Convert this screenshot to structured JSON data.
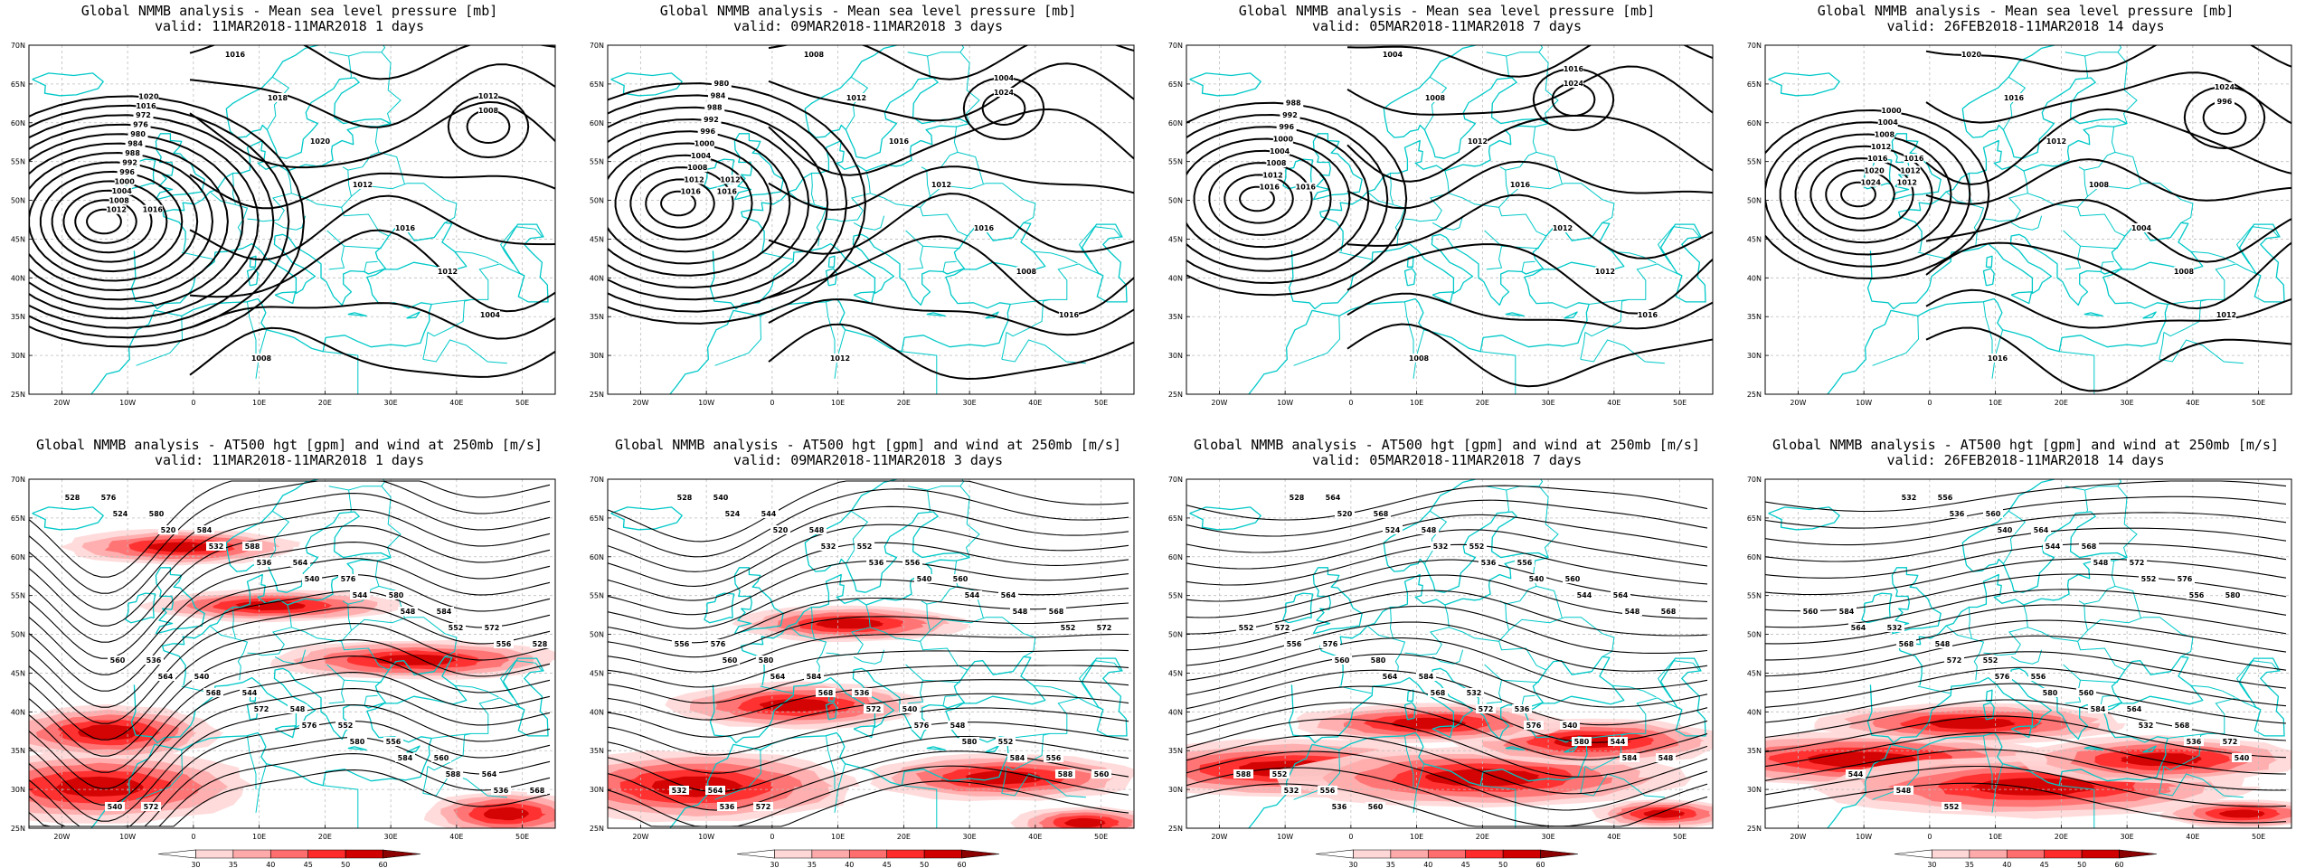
{
  "colors": {
    "coast": "#00c8c8",
    "contour": "#000000",
    "grid": "#bdbdbd",
    "wind_ramp": [
      "#ffffff",
      "#ffd7d7",
      "#ffaaaa",
      "#ff6e6e",
      "#ff2a2a",
      "#d00000",
      "#8b0000"
    ]
  },
  "axes": {
    "lat_labels": [
      "70N",
      "65N",
      "60N",
      "55N",
      "50N",
      "45N",
      "40N",
      "35N",
      "30N",
      "25N"
    ],
    "lon_labels": [
      "20W",
      "10W",
      "0",
      "10E",
      "20E",
      "30E",
      "40E",
      "50E"
    ]
  },
  "colorbar": {
    "labels": [
      "30",
      "35",
      "40",
      "45",
      "50",
      "60"
    ]
  },
  "panels": [
    {
      "title": "Global NMMB analysis - Mean sea level pressure [mb]",
      "valid": "valid: 11MAR2018-11MAR2018   1 days",
      "kind": "mslp",
      "contour_labels": [
        "1012",
        "1008",
        "1004",
        "1000",
        "996",
        "992",
        "988",
        "984",
        "980",
        "976",
        "972",
        "1016",
        "1020",
        "1008",
        "1012",
        "1016",
        "1018",
        "1020",
        "1012",
        "1016",
        "1012",
        "1004",
        "1008",
        "1016"
      ]
    },
    {
      "title": "Global NMMB analysis - Mean sea level pressure [mb]",
      "valid": "valid: 09MAR2018-11MAR2018   3 days",
      "kind": "mslp",
      "contour_labels": [
        "1016",
        "1012",
        "1008",
        "1004",
        "1000",
        "996",
        "992",
        "988",
        "984",
        "980",
        "1024",
        "1004",
        "1008",
        "1012",
        "1016",
        "1012",
        "1016",
        "1008",
        "1016",
        "1012",
        "1016",
        "1012"
      ]
    },
    {
      "title": "Global NMMB analysis - Mean sea level pressure [mb]",
      "valid": "valid: 05MAR2018-11MAR2018   7 days",
      "kind": "mslp",
      "contour_labels": [
        "1016",
        "1012",
        "1008",
        "1004",
        "1000",
        "996",
        "992",
        "988",
        "1024",
        "1016",
        "1004",
        "1008",
        "1012",
        "1016",
        "1012",
        "1012",
        "1016",
        "1008",
        "1016"
      ]
    },
    {
      "title": "Global NMMB analysis - Mean sea level pressure [mb]",
      "valid": "valid: 26FEB2018-11MAR2018   14 days",
      "kind": "mslp",
      "contour_labels": [
        "1024",
        "1020",
        "1016",
        "1012",
        "1008",
        "1004",
        "1000",
        "996",
        "1024",
        "1020",
        "1016",
        "1012",
        "1008",
        "1004",
        "1008",
        "1012",
        "1016",
        "1012",
        "1012",
        "1016"
      ]
    },
    {
      "title": "Global NMMB analysis - AT500 hgt [gpm] and wind at 250mb [m/s]",
      "valid": "valid: 11MAR2018-11MAR2018   1 days",
      "kind": "z500",
      "contour_labels": [
        "528",
        "524",
        "520",
        "532",
        "536",
        "540",
        "544",
        "548",
        "552",
        "556",
        "560",
        "564",
        "568",
        "572",
        "576",
        "580",
        "584",
        "588",
        "536",
        "540",
        "548",
        "552",
        "556",
        "560",
        "564",
        "576",
        "580",
        "584",
        "572",
        "528",
        "536",
        "540",
        "544",
        "548",
        "552",
        "556",
        "560",
        "564",
        "568",
        "572",
        "576",
        "580",
        "584",
        "588"
      ]
    },
    {
      "title": "Global NMMB analysis - AT500 hgt [gpm] and wind at 250mb [m/s]",
      "valid": "valid: 09MAR2018-11MAR2018   3 days",
      "kind": "z500",
      "contour_labels": [
        "528",
        "524",
        "520",
        "532",
        "536",
        "540",
        "544",
        "548",
        "552",
        "556",
        "560",
        "564",
        "568",
        "572",
        "576",
        "580",
        "584",
        "588",
        "532",
        "536",
        "540",
        "544",
        "548",
        "552",
        "556",
        "560",
        "564",
        "568",
        "572",
        "576",
        "580",
        "584",
        "536",
        "540",
        "548",
        "552",
        "556",
        "560",
        "564",
        "572"
      ]
    },
    {
      "title": "Global NMMB analysis - AT500 hgt [gpm] and wind at 250mb [m/s]",
      "valid": "valid: 05MAR2018-11MAR2018   7 days",
      "kind": "z500",
      "contour_labels": [
        "528",
        "520",
        "524",
        "532",
        "536",
        "540",
        "544",
        "548",
        "552",
        "556",
        "560",
        "564",
        "568",
        "572",
        "576",
        "580",
        "584",
        "588",
        "532",
        "536",
        "540",
        "544",
        "548",
        "552",
        "556",
        "560",
        "564",
        "568",
        "572",
        "576",
        "580",
        "584",
        "532",
        "536",
        "540",
        "544",
        "548",
        "552",
        "556",
        "560",
        "564",
        "568"
      ]
    },
    {
      "title": "Global NMMB analysis - AT500 hgt [gpm] and wind at 250mb [m/s]",
      "valid": "valid: 26FEB2018-11MAR2018   14 days",
      "kind": "z500",
      "contour_labels": [
        "532",
        "536",
        "540",
        "544",
        "548",
        "552",
        "556",
        "560",
        "564",
        "568",
        "572",
        "576",
        "580",
        "584",
        "532",
        "536",
        "540",
        "544",
        "548",
        "552",
        "556",
        "560",
        "564",
        "568",
        "572",
        "576",
        "580",
        "584",
        "532",
        "548",
        "552",
        "556",
        "560",
        "564",
        "568",
        "572"
      ]
    }
  ]
}
